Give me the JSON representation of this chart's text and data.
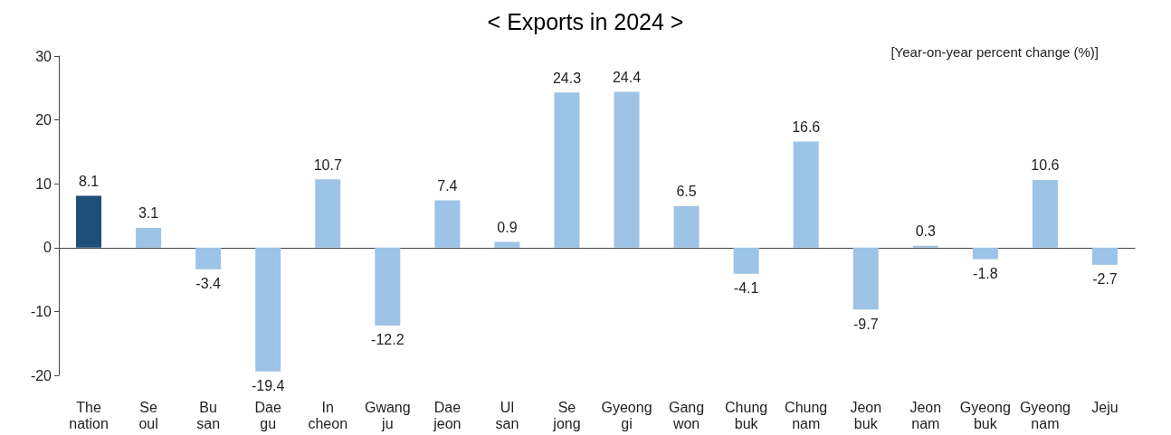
{
  "chart_data": {
    "type": "bar",
    "title": "< Exports in 2024 >",
    "annotations": [
      "[Year-on-year percent change (%)]"
    ],
    "categories": [
      "The\nnation",
      "Se\noul",
      "Bu\nsan",
      "Dae\ngu",
      "In\ncheon",
      "Gwang\nju",
      "Dae\njeon",
      "Ul\nsan",
      "Se\njong",
      "Gyeong\ngi",
      "Gang\nwon",
      "Chung\nbuk",
      "Chung\nnam",
      "Jeon\nbuk",
      "Jeon\nnam",
      "Gyeong\nbuk",
      "Gyeong\nnam",
      "Jeju"
    ],
    "values": [
      8.1,
      3.1,
      -3.4,
      -19.4,
      10.7,
      -12.2,
      7.4,
      0.9,
      24.3,
      24.4,
      6.5,
      -4.1,
      16.6,
      -9.7,
      0.3,
      -1.8,
      10.6,
      -2.7
    ],
    "colors": [
      "#1f4e79",
      "#9dc3e6",
      "#9dc3e6",
      "#9dc3e6",
      "#9dc3e6",
      "#9dc3e6",
      "#9dc3e6",
      "#9dc3e6",
      "#9dc3e6",
      "#9dc3e6",
      "#9dc3e6",
      "#9dc3e6",
      "#9dc3e6",
      "#9dc3e6",
      "#9dc3e6",
      "#9dc3e6",
      "#9dc3e6",
      "#9dc3e6"
    ],
    "ylim": [
      -20,
      30
    ],
    "yticks": [
      -20,
      -10,
      0,
      10,
      20,
      30
    ],
    "data_labels": true
  }
}
